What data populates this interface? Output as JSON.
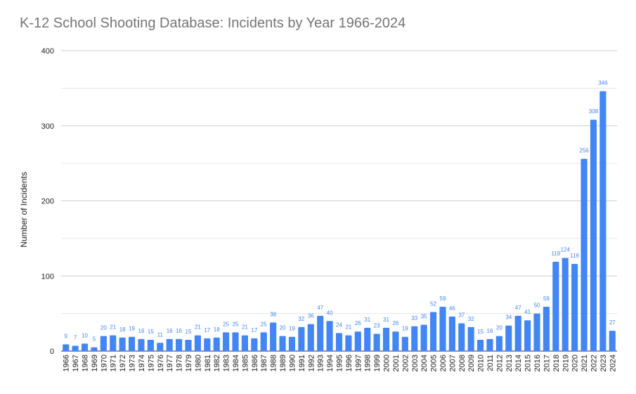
{
  "chart_data": {
    "type": "bar",
    "title": "K-12 School Shooting Database: Incidents by Year 1966-2024",
    "xlabel": "",
    "ylabel": "Number of Incidents",
    "ylim": [
      0,
      400
    ],
    "yticks": [
      0,
      100,
      200,
      300,
      400
    ],
    "grid": true,
    "bar_color": "#4285f4",
    "label_color": "#4285f4",
    "categories": [
      "1966",
      "1967",
      "1968",
      "1969",
      "1970",
      "1971",
      "1972",
      "1973",
      "1974",
      "1975",
      "1976",
      "1977",
      "1978",
      "1979",
      "1980",
      "1981",
      "1982",
      "1983",
      "1984",
      "1985",
      "1986",
      "1987",
      "1988",
      "1989",
      "1990",
      "1991",
      "1992",
      "1993",
      "1994",
      "1995",
      "1996",
      "1997",
      "1998",
      "1999",
      "2000",
      "2001",
      "2002",
      "2003",
      "2004",
      "2005",
      "2006",
      "2007",
      "2008",
      "2009",
      "2010",
      "2011",
      "2012",
      "2013",
      "2014",
      "2015",
      "2016",
      "2017",
      "2018",
      "2019",
      "2020",
      "2021",
      "2022",
      "2023",
      "2024"
    ],
    "values": [
      9,
      7,
      10,
      5,
      20,
      21,
      18,
      19,
      16,
      15,
      11,
      16,
      16,
      15,
      21,
      17,
      18,
      25,
      25,
      21,
      17,
      25,
      38,
      20,
      19,
      32,
      36,
      47,
      40,
      24,
      21,
      26,
      31,
      23,
      31,
      26,
      19,
      33,
      35,
      52,
      59,
      46,
      37,
      32,
      15,
      16,
      20,
      34,
      47,
      41,
      50,
      59,
      119,
      124,
      116,
      256,
      308,
      346,
      27
    ]
  }
}
